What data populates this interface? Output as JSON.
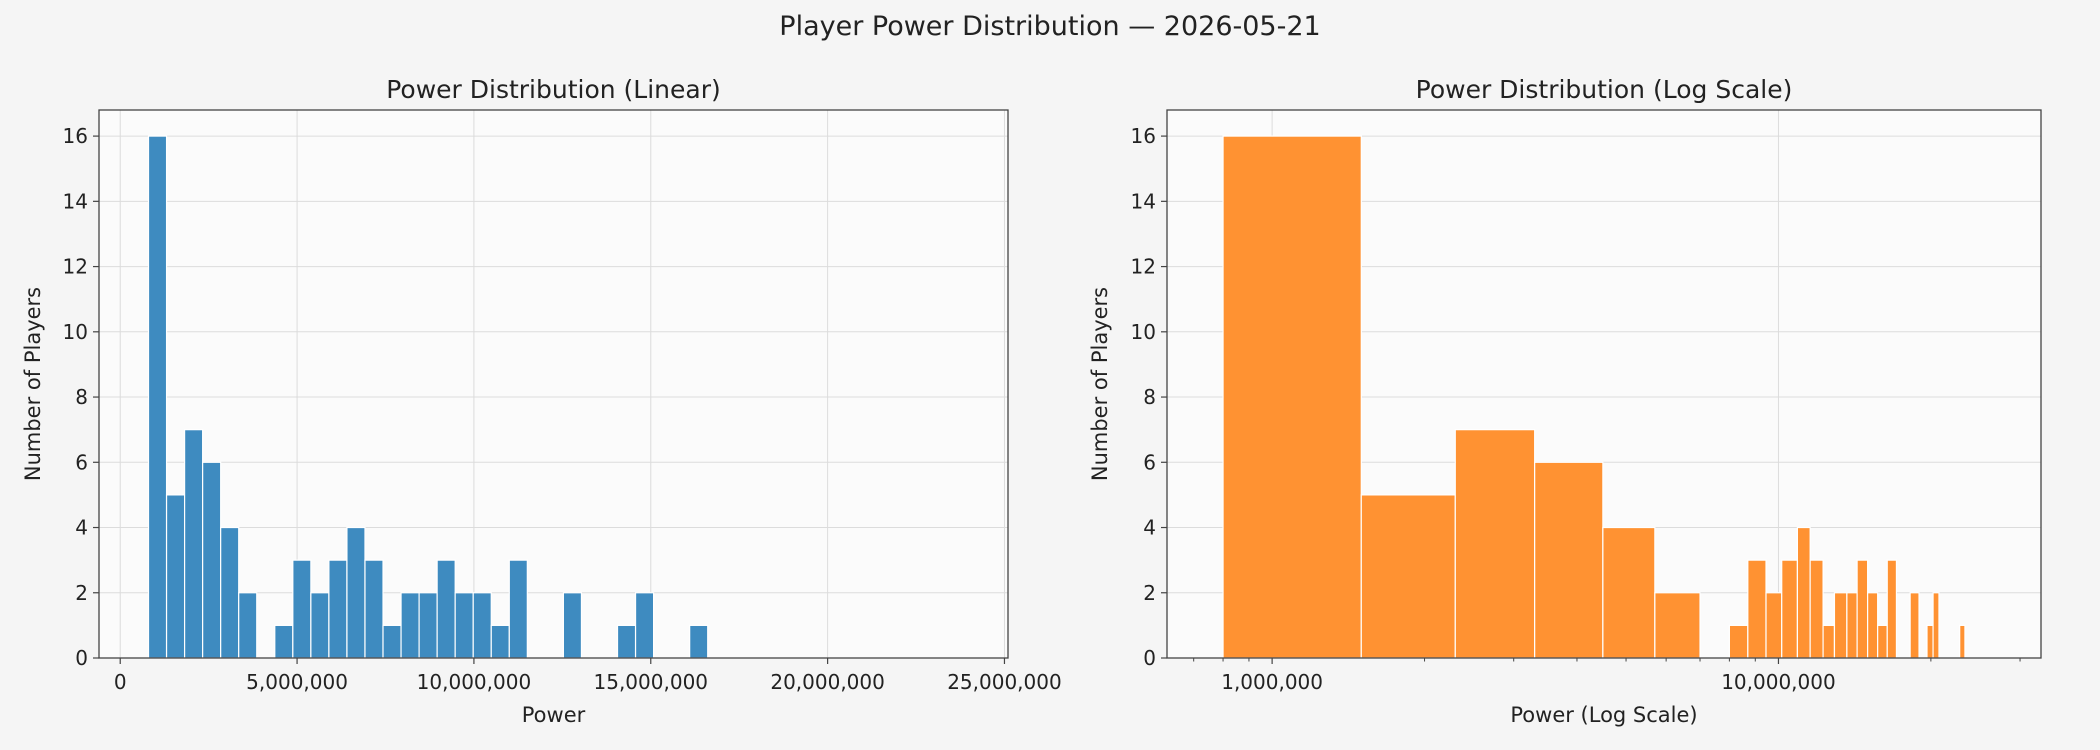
{
  "figure": {
    "title": "Player Power Distribution — 2026-05-21",
    "background": "#f5f5f5",
    "axes_background": "#fbfbfb",
    "grid_color": "#dcdcdc",
    "spine_color": "#444444"
  },
  "chart_data": [
    {
      "type": "bar",
      "title": "Power Distribution (Linear)",
      "xlabel": "Power",
      "ylabel": "Number of Players",
      "xscale": "linear",
      "xlim": [
        -600000,
        25100000
      ],
      "ylim": [
        0,
        16.8
      ],
      "xticks": [
        0,
        5000000,
        10000000,
        15000000,
        20000000,
        25000000
      ],
      "xtick_labels": [
        "0",
        "5,000,000",
        "10,000,000",
        "15,000,000",
        "20,000,000",
        "25,000,000"
      ],
      "yticks": [
        0,
        2,
        4,
        6,
        8,
        10,
        12,
        14,
        16
      ],
      "grid": true,
      "bar_color": "#3e8bc0",
      "bins": [
        {
          "x0": 800000,
          "x1": 1310000,
          "count": 16
        },
        {
          "x0": 1310000,
          "x1": 1820000,
          "count": 5
        },
        {
          "x0": 1820000,
          "x1": 2330000,
          "count": 7
        },
        {
          "x0": 2330000,
          "x1": 2840000,
          "count": 6
        },
        {
          "x0": 2840000,
          "x1": 3350000,
          "count": 4
        },
        {
          "x0": 3350000,
          "x1": 3860000,
          "count": 2
        },
        {
          "x0": 4370000,
          "x1": 4880000,
          "count": 1
        },
        {
          "x0": 4880000,
          "x1": 5390000,
          "count": 3
        },
        {
          "x0": 5390000,
          "x1": 5900000,
          "count": 2
        },
        {
          "x0": 5900000,
          "x1": 6410000,
          "count": 3
        },
        {
          "x0": 6410000,
          "x1": 6920000,
          "count": 4
        },
        {
          "x0": 6920000,
          "x1": 7430000,
          "count": 3
        },
        {
          "x0": 7430000,
          "x1": 7940000,
          "count": 1
        },
        {
          "x0": 7940000,
          "x1": 8450000,
          "count": 2
        },
        {
          "x0": 8450000,
          "x1": 8960000,
          "count": 2
        },
        {
          "x0": 8960000,
          "x1": 9470000,
          "count": 3
        },
        {
          "x0": 9470000,
          "x1": 9980000,
          "count": 2
        },
        {
          "x0": 9980000,
          "x1": 10490000,
          "count": 2
        },
        {
          "x0": 10490000,
          "x1": 11000000,
          "count": 1
        },
        {
          "x0": 11000000,
          "x1": 11510000,
          "count": 3
        },
        {
          "x0": 12530000,
          "x1": 13040000,
          "count": 2
        },
        {
          "x0": 14060000,
          "x1": 14570000,
          "count": 1
        },
        {
          "x0": 14570000,
          "x1": 15080000,
          "count": 2
        },
        {
          "x0": 16100000,
          "x1": 16610000,
          "count": 1
        }
      ]
    },
    {
      "type": "bar",
      "title": "Power Distribution (Log Scale)",
      "xlabel": "Power (Log Scale)",
      "ylabel": "Number of Players",
      "xscale": "log",
      "xlim": [
        620000,
        33000000
      ],
      "ylim": [
        0,
        16.8
      ],
      "xticks": [
        1000000,
        10000000
      ],
      "xtick_labels": [
        "1,000,000",
        "10,000,000"
      ],
      "yticks": [
        0,
        2,
        4,
        6,
        8,
        10,
        12,
        14,
        16
      ],
      "grid": true,
      "bar_color": "#ff9232",
      "bins": [
        {
          "x0": 800000,
          "x1": 1500000,
          "count": 16
        },
        {
          "x0": 1500000,
          "x1": 2300000,
          "count": 5
        },
        {
          "x0": 2300000,
          "x1": 3300000,
          "count": 7
        },
        {
          "x0": 3300000,
          "x1": 4500000,
          "count": 6
        },
        {
          "x0": 4500000,
          "x1": 5700000,
          "count": 4
        },
        {
          "x0": 5700000,
          "x1": 7000000,
          "count": 2
        },
        {
          "x0": 8000000,
          "x1": 8700000,
          "count": 1
        },
        {
          "x0": 8700000,
          "x1": 9450000,
          "count": 3
        },
        {
          "x0": 9450000,
          "x1": 10150000,
          "count": 2
        },
        {
          "x0": 10150000,
          "x1": 10900000,
          "count": 3
        },
        {
          "x0": 10900000,
          "x1": 11550000,
          "count": 4
        },
        {
          "x0": 11550000,
          "x1": 12250000,
          "count": 3
        },
        {
          "x0": 12250000,
          "x1": 12900000,
          "count": 1
        },
        {
          "x0": 12900000,
          "x1": 13650000,
          "count": 2
        },
        {
          "x0": 13650000,
          "x1": 14300000,
          "count": 2
        },
        {
          "x0": 14300000,
          "x1": 15000000,
          "count": 3
        },
        {
          "x0": 15000000,
          "x1": 15700000,
          "count": 2
        },
        {
          "x0": 15700000,
          "x1": 16400000,
          "count": 1
        },
        {
          "x0": 16400000,
          "x1": 17100000,
          "count": 3
        },
        {
          "x0": 18200000,
          "x1": 18950000,
          "count": 2
        },
        {
          "x0": 19650000,
          "x1": 20200000,
          "count": 1
        },
        {
          "x0": 20200000,
          "x1": 20750000,
          "count": 2
        },
        {
          "x0": 22800000,
          "x1": 23350000,
          "count": 1
        }
      ]
    }
  ]
}
